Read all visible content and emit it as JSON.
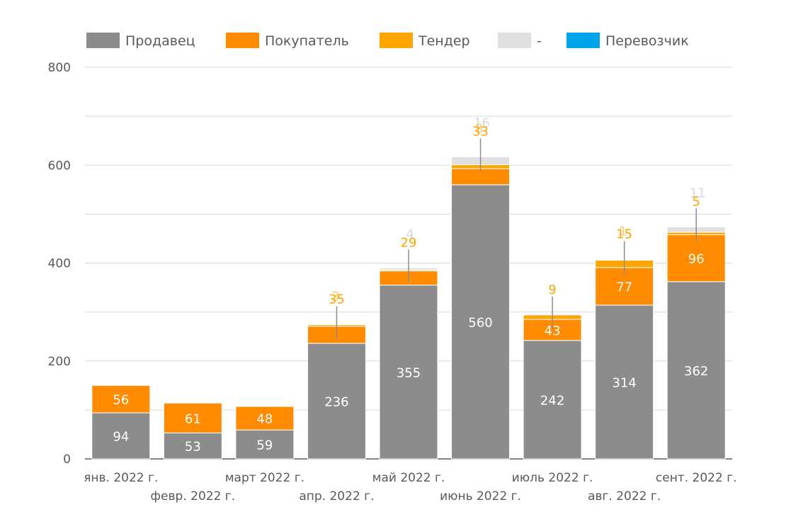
{
  "chart_data": {
    "type": "bar",
    "stacked": true,
    "categories": [
      "янв. 2022 г.",
      "февр. 2022 г.",
      "март 2022 г.",
      "апр. 2022 г.",
      "май 2022 г.",
      "июнь 2022 г.",
      "июль 2022 г.",
      "авг. 2022 г.",
      "сент. 2022 г."
    ],
    "series": [
      {
        "name": "Продавец",
        "color": "#8c8c8c",
        "label_color": "#ffffff",
        "values": [
          94,
          53,
          59,
          236,
          355,
          560,
          242,
          314,
          362
        ]
      },
      {
        "name": "Покупатель",
        "color": "#ff8c00",
        "label_color": "#ffffff",
        "values": [
          56,
          61,
          48,
          35,
          29,
          33,
          43,
          77,
          96
        ]
      },
      {
        "name": "Тендер",
        "color": "#ffa500",
        "label_color": "#ffa500",
        "values": [
          0,
          0,
          0,
          3,
          2,
          8,
          9,
          15,
          5
        ]
      },
      {
        "name": "-",
        "color": "#e0e0e0",
        "label_color": "#d9d9d9",
        "values": [
          0,
          0,
          0,
          0,
          4,
          16,
          0,
          0,
          11
        ]
      },
      {
        "name": "Перевозчик",
        "color": "#00a2e8",
        "label_color": "#00a2e8",
        "values": [
          0,
          0,
          0,
          0,
          0,
          0,
          0,
          1,
          0
        ]
      }
    ],
    "data_labels": {
      "Продавец": [
        "94",
        "53",
        "59",
        "236",
        "355",
        "560",
        "242",
        "314",
        "362"
      ],
      "Покупатель": [
        "56",
        "61",
        "48",
        "",
        "",
        "",
        "43",
        "77",
        "96"
      ],
      "Тендер_outside": [
        "",
        "",
        "",
        "35",
        "29",
        "33",
        "9",
        "15",
        "5"
      ],
      "Тендер_back": [
        "",
        "",
        "",
        "3",
        "",
        "8",
        "",
        "1",
        ""
      ],
      "-_outside": [
        "",
        "",
        "",
        "",
        "4",
        "16",
        "",
        "",
        "11"
      ]
    },
    "yticks": [
      0,
      200,
      400,
      600,
      800
    ],
    "ylim": [
      0,
      800
    ],
    "grid": true,
    "legend": "top"
  }
}
